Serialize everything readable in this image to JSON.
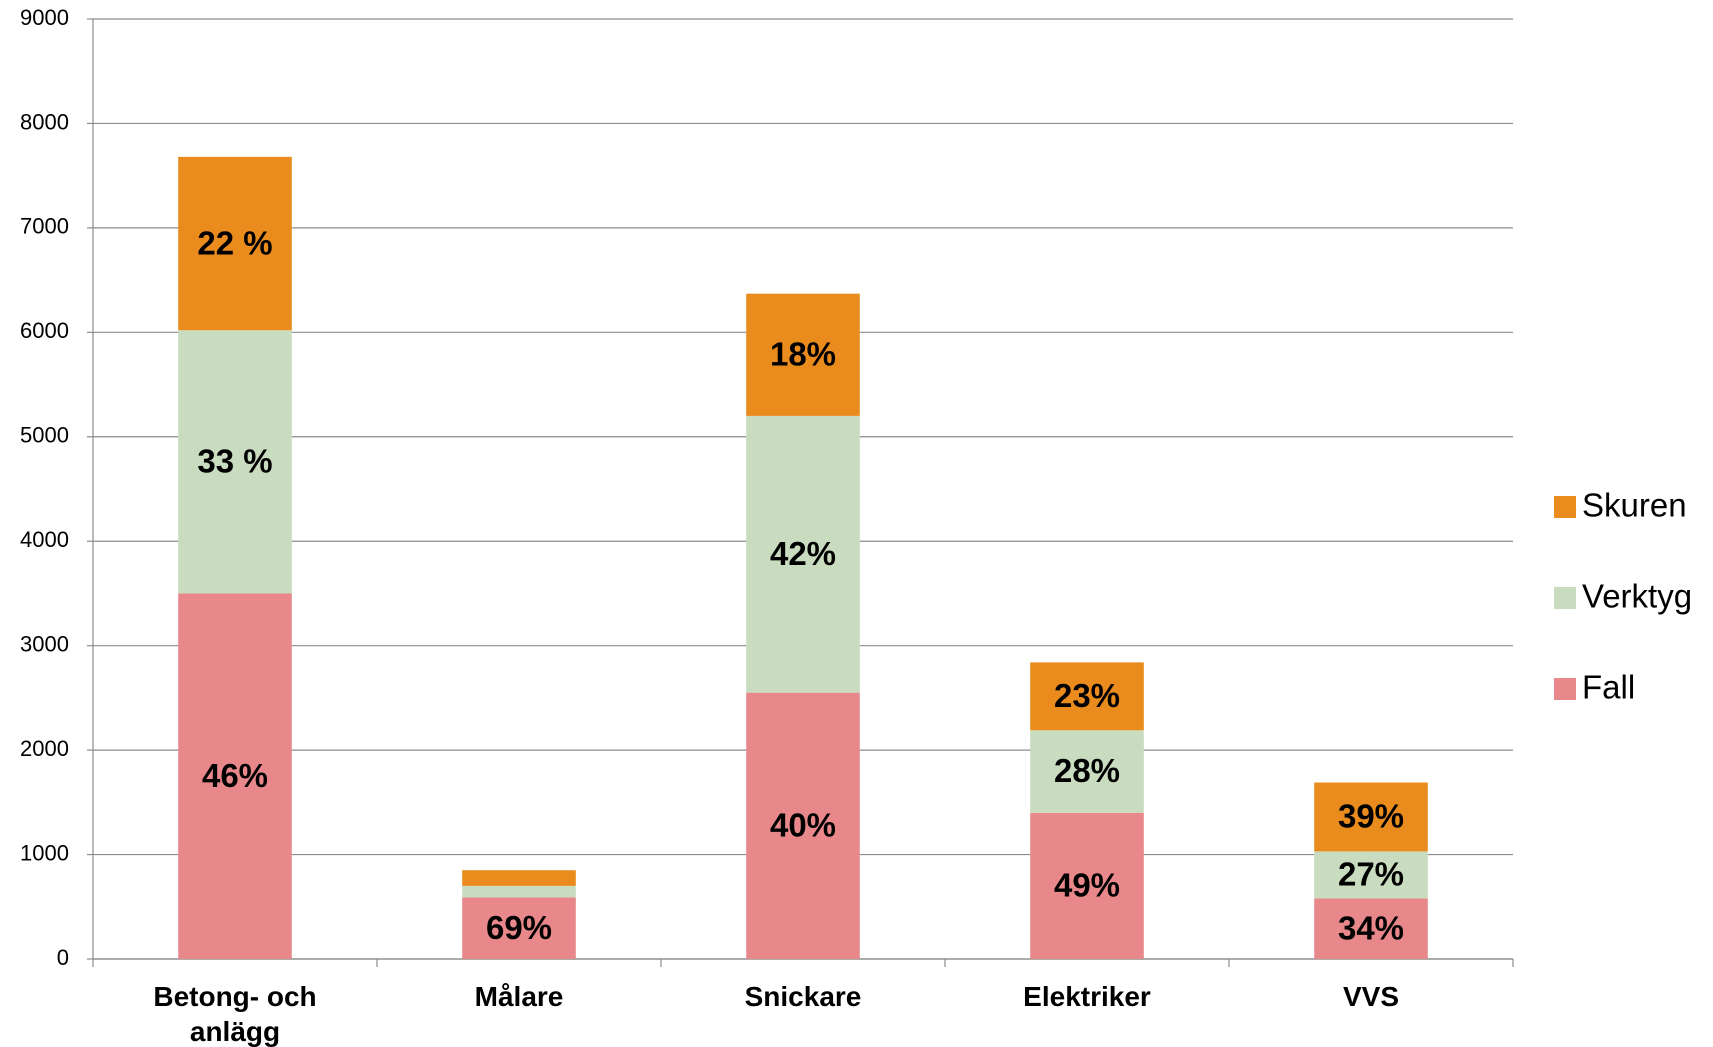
{
  "chart_data": {
    "type": "stacked_bar",
    "categories": [
      "Betong- och anlägg",
      "Målare",
      "Snickare",
      "Elektriker",
      "VVS"
    ],
    "series": [
      {
        "name": "Fall",
        "color": "#e8888a",
        "values": [
          3500,
          590,
          2550,
          1400,
          580
        ],
        "labels": [
          "46%",
          "69%",
          "40%",
          "49%",
          "34%"
        ]
      },
      {
        "name": "Verktyg",
        "color": "#cadcc0",
        "values": [
          2520,
          110,
          2650,
          790,
          450
        ],
        "labels": [
          "33 %",
          null,
          "42%",
          "28%",
          "27%"
        ]
      },
      {
        "name": "Skuren",
        "color": "#ea8b1e",
        "values": [
          1660,
          150,
          1170,
          650,
          660
        ],
        "labels": [
          "22 %",
          null,
          "18%",
          "23%",
          "39%"
        ]
      }
    ],
    "ylim": [
      0,
      9000
    ],
    "yticks": [
      0,
      1000,
      2000,
      3000,
      4000,
      5000,
      6000,
      7000,
      8000,
      9000
    ],
    "grid": true,
    "legend": "right"
  }
}
